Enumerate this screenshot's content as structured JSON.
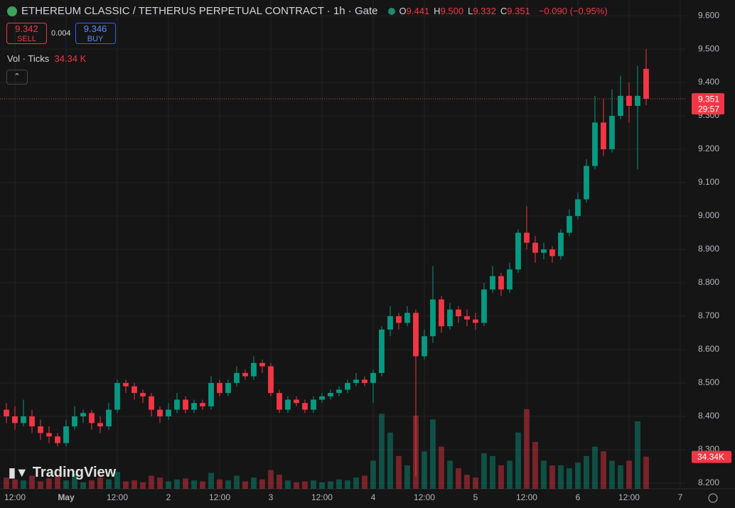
{
  "header": {
    "title": "ETHEREUM CLASSIC / TETHERUS PERPETUAL CONTRACT · 1h · Gate",
    "ohlc": [
      {
        "key": "O",
        "value": "9.441"
      },
      {
        "key": "H",
        "value": "9.500"
      },
      {
        "key": "L",
        "value": "9.332"
      },
      {
        "key": "C",
        "value": "9.351"
      }
    ],
    "change": "−0.090 (−0.95%)",
    "sell_price": "9.342",
    "sell_label": "SELL",
    "spread": "0.004",
    "buy_price": "9.346",
    "buy_label": "BUY",
    "volume_title": "Vol · Ticks",
    "volume_value": "34.34 K"
  },
  "logo": "TradingView",
  "chart_data": {
    "type": "candlestick",
    "up_color": "#089981",
    "down_color": "#f23645",
    "grid": true,
    "ylim": [
      8.183,
      9.647
    ],
    "yticks": [
      {
        "value": 8.2,
        "label": "8.200"
      },
      {
        "value": 8.3,
        "label": "8.300"
      },
      {
        "value": 8.4,
        "label": "8.400"
      },
      {
        "value": 8.5,
        "label": "8.500"
      },
      {
        "value": 8.6,
        "label": "8.600"
      },
      {
        "value": 8.7,
        "label": "8.700"
      },
      {
        "value": 8.8,
        "label": "8.800"
      },
      {
        "value": 8.9,
        "label": "8.900"
      },
      {
        "value": 9.0,
        "label": "9.000"
      },
      {
        "value": 9.1,
        "label": "9.100"
      },
      {
        "value": 9.2,
        "label": "9.200"
      },
      {
        "value": 9.3,
        "label": "9.300"
      },
      {
        "value": 9.4,
        "label": "9.400"
      },
      {
        "value": 9.5,
        "label": "9.500"
      },
      {
        "value": 9.6,
        "label": "9.600"
      }
    ],
    "xlim": [
      -0.75,
      79.67
    ],
    "xticks": [
      {
        "value": 1,
        "label": "12:00"
      },
      {
        "value": 7,
        "label": "May"
      },
      {
        "value": 13,
        "label": "12:00"
      },
      {
        "value": 19,
        "label": "2"
      },
      {
        "value": 25,
        "label": "12:00"
      },
      {
        "value": 31,
        "label": "3"
      },
      {
        "value": 37,
        "label": "12:00"
      },
      {
        "value": 43,
        "label": "4"
      },
      {
        "value": 49,
        "label": "12:00"
      },
      {
        "value": 55,
        "label": "5"
      },
      {
        "value": 61,
        "label": "12:00"
      },
      {
        "value": 67,
        "label": "6"
      },
      {
        "value": 73,
        "label": "12:00"
      },
      {
        "value": 79,
        "label": "7"
      }
    ],
    "volume_ylim": [
      0,
      150
    ],
    "last_price": 9.351,
    "countdown": "29:57",
    "last_volume_label": "34.34K",
    "candles": [
      [
        8.42,
        8.44,
        8.38,
        8.4,
        12
      ],
      [
        8.4,
        8.43,
        8.36,
        8.38,
        10
      ],
      [
        8.38,
        8.45,
        8.37,
        8.4,
        9
      ],
      [
        8.4,
        8.42,
        8.35,
        8.37,
        14
      ],
      [
        8.37,
        8.39,
        8.33,
        8.35,
        8
      ],
      [
        8.35,
        8.37,
        8.32,
        8.34,
        11
      ],
      [
        8.34,
        8.35,
        8.31,
        8.32,
        13
      ],
      [
        8.32,
        8.39,
        8.31,
        8.37,
        9
      ],
      [
        8.37,
        8.43,
        8.36,
        8.4,
        16
      ],
      [
        8.4,
        8.42,
        8.38,
        8.41,
        7
      ],
      [
        8.41,
        8.42,
        8.36,
        8.38,
        9
      ],
      [
        8.38,
        8.4,
        8.35,
        8.37,
        12
      ],
      [
        8.37,
        8.44,
        8.36,
        8.42,
        10
      ],
      [
        8.42,
        8.51,
        8.41,
        8.5,
        18
      ],
      [
        8.5,
        8.51,
        8.47,
        8.49,
        8
      ],
      [
        8.49,
        8.5,
        8.45,
        8.47,
        9
      ],
      [
        8.47,
        8.48,
        8.44,
        8.46,
        7
      ],
      [
        8.46,
        8.47,
        8.4,
        8.42,
        14
      ],
      [
        8.42,
        8.43,
        8.38,
        8.4,
        12
      ],
      [
        8.4,
        8.44,
        8.39,
        8.42,
        8
      ],
      [
        8.42,
        8.47,
        8.41,
        8.45,
        10
      ],
      [
        8.45,
        8.46,
        8.41,
        8.42,
        11
      ],
      [
        8.42,
        8.45,
        8.41,
        8.44,
        9
      ],
      [
        8.44,
        8.45,
        8.42,
        8.43,
        8
      ],
      [
        8.43,
        8.52,
        8.42,
        8.5,
        17
      ],
      [
        8.5,
        8.51,
        8.46,
        8.47,
        10
      ],
      [
        8.47,
        8.51,
        8.46,
        8.5,
        9
      ],
      [
        8.5,
        8.55,
        8.49,
        8.53,
        14
      ],
      [
        8.53,
        8.54,
        8.51,
        8.52,
        8
      ],
      [
        8.52,
        8.58,
        8.51,
        8.56,
        12
      ],
      [
        8.56,
        8.57,
        8.53,
        8.55,
        10
      ],
      [
        8.55,
        8.56,
        8.46,
        8.47,
        20
      ],
      [
        8.47,
        8.48,
        8.41,
        8.42,
        15
      ],
      [
        8.42,
        8.46,
        8.41,
        8.45,
        9
      ],
      [
        8.45,
        8.46,
        8.43,
        8.44,
        7
      ],
      [
        8.44,
        8.45,
        8.41,
        8.42,
        8
      ],
      [
        8.42,
        8.46,
        8.41,
        8.45,
        9
      ],
      [
        8.45,
        8.47,
        8.44,
        8.46,
        7
      ],
      [
        8.46,
        8.48,
        8.45,
        8.47,
        8
      ],
      [
        8.47,
        8.49,
        8.46,
        8.48,
        10
      ],
      [
        8.48,
        8.51,
        8.47,
        8.5,
        9
      ],
      [
        8.5,
        8.53,
        8.49,
        8.51,
        12
      ],
      [
        8.51,
        8.52,
        8.49,
        8.5,
        14
      ],
      [
        8.5,
        8.54,
        8.44,
        8.53,
        30
      ],
      [
        8.53,
        8.67,
        8.52,
        8.66,
        80
      ],
      [
        8.66,
        8.73,
        8.64,
        8.7,
        60
      ],
      [
        8.7,
        8.71,
        8.66,
        8.68,
        35
      ],
      [
        8.68,
        8.73,
        8.67,
        8.71,
        25
      ],
      [
        8.71,
        8.72,
        8.22,
        8.58,
        78
      ],
      [
        8.58,
        8.66,
        8.57,
        8.64,
        40
      ],
      [
        8.64,
        8.85,
        8.62,
        8.75,
        74
      ],
      [
        8.75,
        8.76,
        8.65,
        8.67,
        45
      ],
      [
        8.67,
        8.74,
        8.66,
        8.72,
        30
      ],
      [
        8.72,
        8.73,
        8.68,
        8.7,
        22
      ],
      [
        8.7,
        8.72,
        8.67,
        8.69,
        15
      ],
      [
        8.69,
        8.71,
        8.66,
        8.68,
        12
      ],
      [
        8.68,
        8.8,
        8.67,
        8.78,
        38
      ],
      [
        8.78,
        8.85,
        8.77,
        8.82,
        35
      ],
      [
        8.82,
        8.83,
        8.76,
        8.78,
        25
      ],
      [
        8.78,
        8.86,
        8.77,
        8.84,
        30
      ],
      [
        8.84,
        8.96,
        8.83,
        8.95,
        60
      ],
      [
        8.95,
        9.03,
        8.9,
        8.92,
        85
      ],
      [
        8.92,
        8.94,
        8.86,
        8.89,
        50
      ],
      [
        8.89,
        8.92,
        8.87,
        8.9,
        30
      ],
      [
        8.9,
        8.91,
        8.86,
        8.88,
        25
      ],
      [
        8.88,
        8.96,
        8.87,
        8.95,
        25
      ],
      [
        8.95,
        9.02,
        8.94,
        9.0,
        22
      ],
      [
        9.0,
        9.07,
        8.99,
        9.05,
        28
      ],
      [
        9.05,
        9.17,
        9.04,
        9.15,
        35
      ],
      [
        9.15,
        9.36,
        9.14,
        9.28,
        45
      ],
      [
        9.28,
        9.35,
        9.18,
        9.2,
        40
      ],
      [
        9.2,
        9.38,
        9.19,
        9.3,
        30
      ],
      [
        9.3,
        9.42,
        9.29,
        9.36,
        25
      ],
      [
        9.36,
        9.4,
        9.28,
        9.33,
        30
      ],
      [
        9.33,
        9.45,
        9.14,
        9.36,
        72
      ],
      [
        9.441,
        9.5,
        9.332,
        9.351,
        34.34
      ]
    ]
  }
}
